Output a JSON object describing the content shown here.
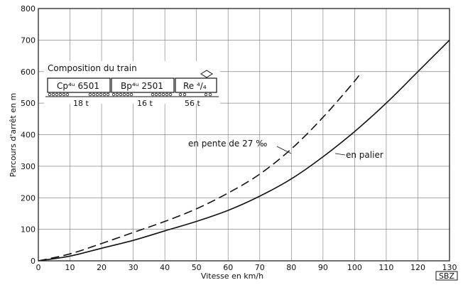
{
  "chart_data": {
    "type": "line",
    "xlabel": "Vitesse en km/h",
    "ylabel": "Parcours d'arrêt en m",
    "xlim": [
      0,
      130
    ],
    "ylim": [
      0,
      800
    ],
    "x_ticks": [
      0,
      10,
      20,
      30,
      40,
      50,
      60,
      70,
      80,
      90,
      100,
      110,
      120,
      130
    ],
    "y_ticks": [
      0,
      100,
      200,
      300,
      400,
      500,
      600,
      700,
      800
    ],
    "grid": true,
    "series": [
      {
        "name": "en palier",
        "style": "solid",
        "x": [
          0,
          10,
          20,
          30,
          40,
          50,
          60,
          70,
          80,
          90,
          100,
          110,
          120,
          130
        ],
        "y": [
          0,
          15,
          40,
          65,
          95,
          125,
          160,
          205,
          260,
          330,
          410,
          500,
          600,
          700
        ]
      },
      {
        "name": "en pente de 27 ‰",
        "style": "dashed",
        "x": [
          0,
          10,
          20,
          30,
          40,
          50,
          60,
          70,
          80,
          90,
          100,
          102
        ],
        "y": [
          0,
          22,
          55,
          90,
          125,
          165,
          215,
          275,
          355,
          455,
          570,
          600
        ]
      }
    ],
    "annotations": {
      "curve_palier": "en palier",
      "curve_pente": "en pente de 27 ‰",
      "badge": "SBZ"
    },
    "train": {
      "title": "Composition du train",
      "cars": [
        {
          "label": "Cp⁴ᵘ 6501",
          "weight": "18 t"
        },
        {
          "label": "Bp⁴ᵘ 2501",
          "weight": "16 t"
        },
        {
          "label": "Re ⁴/₄",
          "weight": "56 t"
        }
      ]
    }
  }
}
